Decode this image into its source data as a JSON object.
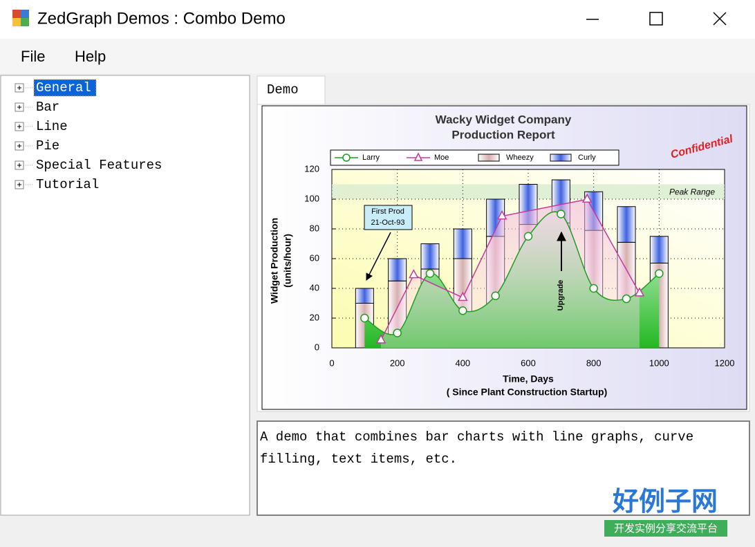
{
  "window": {
    "title": "ZedGraph Demos : Combo Demo"
  },
  "menu": [
    "File",
    "Help"
  ],
  "tree": [
    "General",
    "Bar",
    "Line",
    "Pie",
    "Special Features",
    "Tutorial"
  ],
  "tab": "Demo",
  "description": [
    "A demo that combines bar charts with line graphs, curve",
    "filling, text items, etc."
  ],
  "watermark": {
    "logo": "好例子网",
    "tagline": "开发实例分享交流平台"
  },
  "chart_data": {
    "type": "combo",
    "title": [
      "Wacky Widget Company",
      "Production Report"
    ],
    "x_label": [
      "Time, Days",
      "( Since Plant Construction Startup)"
    ],
    "y_label": [
      "Widget Production",
      "(units/hour)"
    ],
    "xlim": [
      0,
      1200
    ],
    "xticks": [
      0,
      200,
      400,
      600,
      800,
      1000,
      1200
    ],
    "ylim": [
      0,
      120
    ],
    "yticks": [
      0,
      20,
      40,
      60,
      80,
      100,
      120
    ],
    "grid": true,
    "stacked": true,
    "series": [
      {
        "name": "Larry",
        "type": "smooth-line",
        "color": "#1e9e1e",
        "x": [
          100,
          200,
          300,
          400,
          500,
          600,
          700,
          800,
          900,
          1000
        ],
        "values": [
          20,
          10,
          50,
          25,
          35,
          75,
          90,
          40,
          33,
          50
        ]
      },
      {
        "name": "Moe",
        "type": "line",
        "color": "#c8389c",
        "x": [
          150,
          250,
          400,
          520,
          780,
          940
        ],
        "values": [
          5.2,
          49,
          33.8,
          88.57,
          99.9,
          36.8
        ]
      },
      {
        "name": "Wheezy",
        "type": "bar",
        "color": "#d6aeb0",
        "x": [
          100,
          200,
          300,
          400,
          500,
          600,
          700,
          800,
          900,
          1000
        ],
        "values": [
          30,
          45,
          53,
          60,
          75,
          83,
          84,
          79,
          71,
          57
        ]
      },
      {
        "name": "Curly",
        "type": "bar",
        "color": "#3f62e0",
        "x": [
          100,
          200,
          300,
          400,
          500,
          600,
          700,
          800,
          900,
          1000
        ],
        "values": [
          10,
          15,
          17,
          20,
          25,
          27,
          29,
          26,
          24,
          18
        ]
      }
    ],
    "peak_range": {
      "label": "Peak Range",
      "ylim": [
        100,
        110
      ]
    },
    "annotations": {
      "first_prod": [
        "First Prod",
        "21-Oct-93"
      ],
      "upgrade": "Upgrade",
      "confidential": "Confidential"
    }
  }
}
